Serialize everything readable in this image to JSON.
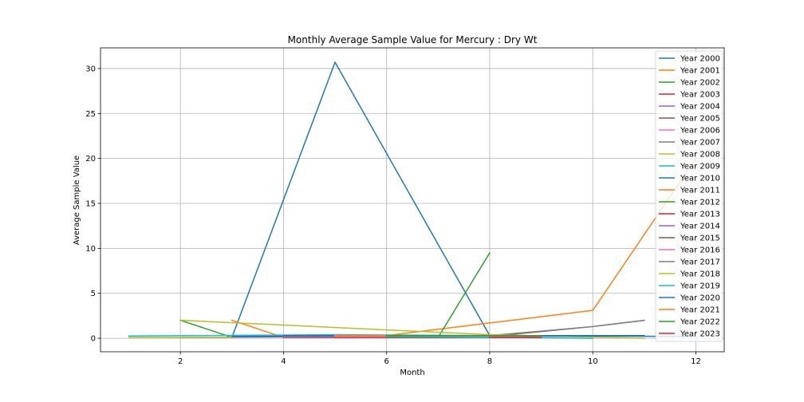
{
  "chart_data": {
    "type": "line",
    "title": "Monthly Average Sample Value for Mercury : Dry Wt",
    "xlabel": "Month",
    "ylabel": "Average Sample Value",
    "xlim": [
      0.45,
      12.55
    ],
    "ylim": [
      -1.5,
      32.3
    ],
    "xticks": [
      2,
      4,
      6,
      8,
      10,
      12
    ],
    "yticks": [
      0,
      5,
      10,
      15,
      20,
      25,
      30
    ],
    "grid": true,
    "legend_position": "top-right",
    "series": [
      {
        "name": "Year 2000",
        "color": "#1f77b4",
        "x": [
          3,
          5,
          8
        ],
        "y": [
          0.1,
          30.7,
          0.3
        ]
      },
      {
        "name": "Year 2001",
        "color": "#ff7f0e",
        "x": [
          3,
          4
        ],
        "y": [
          2.0,
          0.1
        ]
      },
      {
        "name": "Year 2002",
        "color": "#2ca02c",
        "x": [
          2,
          3
        ],
        "y": [
          2.0,
          0.1
        ]
      },
      {
        "name": "Year 2003",
        "color": "#d62728",
        "x": [
          4,
          8
        ],
        "y": [
          0.1,
          0.1
        ]
      },
      {
        "name": "Year 2004",
        "color": "#9467bd",
        "x": [
          2,
          6
        ],
        "y": [
          0.1,
          0.2
        ]
      },
      {
        "name": "Year 2005",
        "color": "#8c564b",
        "x": [
          3,
          8
        ],
        "y": [
          0.2,
          0.2
        ]
      },
      {
        "name": "Year 2006",
        "color": "#e377c2",
        "x": [
          5,
          9
        ],
        "y": [
          0.15,
          0.15
        ]
      },
      {
        "name": "Year 2007",
        "color": "#7f7f7f",
        "x": [
          4,
          10
        ],
        "y": [
          0.2,
          0.3
        ]
      },
      {
        "name": "Year 2008",
        "color": "#bcbd22",
        "x": [
          1,
          3
        ],
        "y": [
          0.1,
          0.1
        ]
      },
      {
        "name": "Year 2009",
        "color": "#17becf",
        "x": [
          1,
          5,
          8
        ],
        "y": [
          0.25,
          0.4,
          0.3
        ]
      },
      {
        "name": "Year 2010",
        "color": "#1f77b4",
        "x": [
          3,
          6,
          11
        ],
        "y": [
          0.2,
          0.3,
          0.3
        ]
      },
      {
        "name": "Year 2011",
        "color": "#ff7f0e",
        "x": [
          6,
          8,
          10,
          12
        ],
        "y": [
          0.3,
          1.7,
          3.1,
          20.0
        ]
      },
      {
        "name": "Year 2012",
        "color": "#2ca02c",
        "x": [
          7,
          8
        ],
        "y": [
          0.1,
          9.5
        ]
      },
      {
        "name": "Year 2013",
        "color": "#d62728",
        "x": [
          5,
          9
        ],
        "y": [
          0.1,
          0.1
        ]
      },
      {
        "name": "Year 2014",
        "color": "#9467bd",
        "x": [
          4,
          9
        ],
        "y": [
          0.2,
          0.2
        ]
      },
      {
        "name": "Year 2015",
        "color": "#8c564b",
        "x": [
          6,
          8,
          10,
          11
        ],
        "y": [
          0.1,
          0.2,
          1.3,
          2.0
        ]
      },
      {
        "name": "Year 2016",
        "color": "#e377c2",
        "x": [
          5,
          10
        ],
        "y": [
          0.2,
          0.2
        ]
      },
      {
        "name": "Year 2017",
        "color": "#7f7f7f",
        "x": [
          8,
          10,
          11
        ],
        "y": [
          0.3,
          1.3,
          2.0
        ]
      },
      {
        "name": "Year 2018",
        "color": "#bcbd22",
        "x": [
          2,
          8,
          11
        ],
        "y": [
          2.0,
          0.4,
          0.0
        ]
      },
      {
        "name": "Year 2019",
        "color": "#17becf",
        "x": [
          6,
          10
        ],
        "y": [
          0.2,
          0.0
        ]
      },
      {
        "name": "Year 2020",
        "color": "#1f77b4",
        "x": [
          4,
          8,
          12
        ],
        "y": [
          0.3,
          0.3,
          0.2
        ]
      },
      {
        "name": "Year 2021",
        "color": "#ff7f0e",
        "x": [
          5,
          9
        ],
        "y": [
          0.3,
          0.3
        ]
      },
      {
        "name": "Year 2022",
        "color": "#2ca02c",
        "x": [
          6,
          9
        ],
        "y": [
          0.3,
          0.3
        ]
      },
      {
        "name": "Year 2023",
        "color": "#d62728",
        "x": [
          8,
          9
        ],
        "y": [
          0.1,
          0.1
        ]
      }
    ]
  }
}
